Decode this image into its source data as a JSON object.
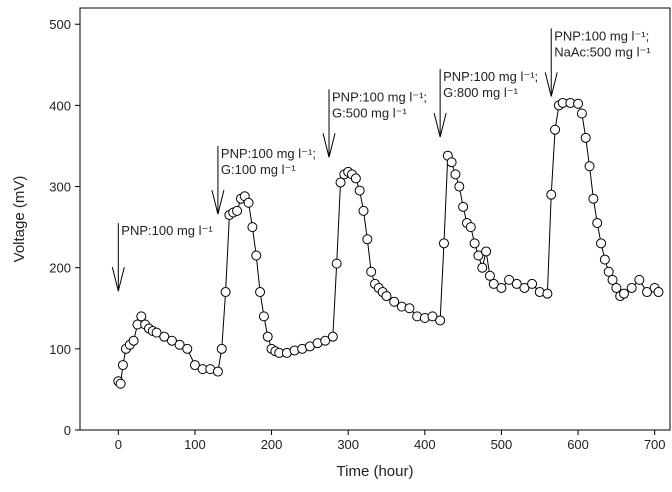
{
  "chart_data": {
    "type": "line",
    "x_label": "Time (hour)",
    "y_label": "Voltage (mV)",
    "xlim": [
      -50,
      720
    ],
    "ylim": [
      0,
      520
    ],
    "xticks": [
      0,
      100,
      200,
      300,
      400,
      500,
      600,
      700
    ],
    "yticks": [
      0,
      100,
      200,
      300,
      400,
      500
    ],
    "color": "#000000",
    "x": [
      0,
      3,
      6,
      10,
      15,
      20,
      25,
      30,
      35,
      40,
      45,
      50,
      60,
      70,
      80,
      90,
      100,
      110,
      120,
      130,
      135,
      140,
      145,
      150,
      155,
      160,
      165,
      170,
      175,
      180,
      185,
      190,
      195,
      200,
      205,
      210,
      220,
      230,
      240,
      250,
      260,
      270,
      280,
      285,
      290,
      295,
      300,
      305,
      310,
      315,
      320,
      325,
      330,
      335,
      340,
      345,
      350,
      360,
      370,
      380,
      390,
      400,
      410,
      420,
      425,
      430,
      435,
      440,
      445,
      450,
      455,
      460,
      465,
      470,
      475,
      480,
      485,
      490,
      500,
      510,
      520,
      530,
      540,
      550,
      560,
      565,
      570,
      575,
      580,
      590,
      600,
      605,
      610,
      615,
      620,
      625,
      630,
      635,
      640,
      645,
      650,
      655,
      660,
      670,
      680,
      690,
      700,
      705
    ],
    "values": [
      60,
      57,
      80,
      100,
      105,
      110,
      130,
      140,
      130,
      125,
      122,
      120,
      115,
      110,
      105,
      100,
      80,
      75,
      75,
      72,
      100,
      170,
      265,
      268,
      270,
      285,
      288,
      280,
      250,
      215,
      170,
      140,
      115,
      100,
      97,
      95,
      95,
      98,
      100,
      103,
      107,
      110,
      115,
      205,
      305,
      315,
      318,
      315,
      310,
      295,
      270,
      235,
      195,
      180,
      175,
      170,
      165,
      158,
      152,
      150,
      140,
      138,
      140,
      135,
      230,
      338,
      330,
      315,
      300,
      275,
      255,
      250,
      230,
      215,
      200,
      220,
      190,
      180,
      175,
      185,
      180,
      175,
      180,
      170,
      168,
      290,
      370,
      400,
      403,
      403,
      402,
      390,
      360,
      325,
      285,
      255,
      230,
      210,
      195,
      185,
      175,
      165,
      168,
      175,
      185,
      170,
      175,
      170
    ],
    "annotations": [
      {
        "lines": [
          "PNP:100 mg l⁻¹"
        ],
        "x": 0,
        "y": 245
      },
      {
        "lines": [
          "PNP:100 mg l⁻¹;",
          "G:100 mg l⁻¹"
        ],
        "x": 130,
        "y": 340
      },
      {
        "lines": [
          "PNP:100 mg l⁻¹;",
          "G:500 mg l⁻¹"
        ],
        "x": 275,
        "y": 410
      },
      {
        "lines": [
          "PNP:100 mg l⁻¹;",
          "G:800 mg l⁻¹"
        ],
        "x": 420,
        "y": 435
      },
      {
        "lines": [
          "PNP:100 mg l⁻¹;",
          "NaAc:500 mg l⁻¹"
        ],
        "x": 565,
        "y": 485
      }
    ]
  }
}
